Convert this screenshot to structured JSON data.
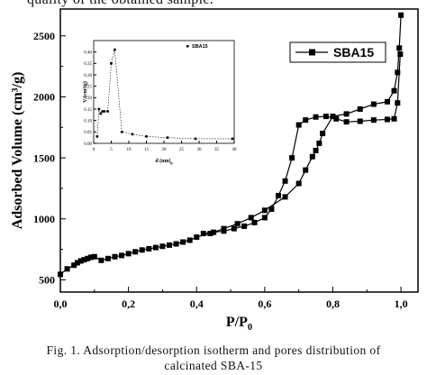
{
  "header_text": "quality of the obtained sample.",
  "caption": {
    "line1": "Fig. 1. Adsorption/desorption isotherm and pores distribution of",
    "line2": "calcinated SBA-15"
  },
  "chart_data": [
    {
      "type": "line",
      "xlabel": "P/P",
      "xlabel_sub": "0",
      "ylabel": "Adsorbed Volume (cm³/g)",
      "xlim": [
        0.0,
        1.05
      ],
      "ylim": [
        400,
        2720
      ],
      "xticks": [
        0.0,
        0.2,
        0.4,
        0.6,
        0.8,
        1.0
      ],
      "xtick_labels": [
        "0,0",
        "0,2",
        "0,4",
        "0,6",
        "0,8",
        "1,0"
      ],
      "yticks": [
        500,
        1000,
        1500,
        2000,
        2500
      ],
      "ytick_labels": [
        "500",
        "1000",
        "1500",
        "2000",
        "2500"
      ],
      "legend": {
        "position": "top-right",
        "entries": [
          "SBA15"
        ]
      },
      "series": [
        {
          "name": "SBA15",
          "color": "#000000",
          "marker": "square",
          "x": [
            0.0,
            0.02,
            0.04,
            0.05,
            0.06,
            0.07,
            0.08,
            0.09,
            0.1,
            0.12,
            0.14,
            0.16,
            0.18,
            0.2,
            0.22,
            0.24,
            0.26,
            0.28,
            0.3,
            0.32,
            0.34,
            0.36,
            0.38,
            0.4,
            0.44,
            0.48,
            0.52,
            0.56,
            0.6,
            0.66,
            0.7,
            0.72,
            0.74,
            0.75,
            0.76,
            0.77,
            0.8,
            0.84,
            0.88,
            0.92,
            0.96,
            0.98,
            0.99,
            0.995,
            1.0
          ],
          "y": [
            545,
            590,
            620,
            640,
            655,
            665,
            675,
            685,
            690,
            660,
            675,
            690,
            700,
            715,
            730,
            745,
            755,
            765,
            775,
            785,
            795,
            810,
            825,
            850,
            880,
            920,
            960,
            1010,
            1070,
            1180,
            1290,
            1400,
            1510,
            1560,
            1620,
            1700,
            1840,
            1860,
            1900,
            1940,
            1960,
            2050,
            2200,
            2400,
            2670
          ]
        },
        {
          "name": "",
          "color": "#000000",
          "marker": "square",
          "x": [
            0.998,
            0.99,
            0.98,
            0.96,
            0.92,
            0.88,
            0.84,
            0.81,
            0.78,
            0.75,
            0.72,
            0.7,
            0.68,
            0.66,
            0.64,
            0.62,
            0.6,
            0.57,
            0.54,
            0.51,
            0.48,
            0.45,
            0.42
          ],
          "y": [
            2350,
            1950,
            1820,
            1815,
            1810,
            1800,
            1795,
            1820,
            1840,
            1835,
            1810,
            1770,
            1500,
            1310,
            1190,
            1080,
            1010,
            970,
            940,
            920,
            900,
            890,
            880
          ]
        }
      ]
    },
    {
      "type": "line",
      "xlabel": "d  (nm)",
      "xlabel_sub": "p",
      "ylabel": "V  (cm³/g)",
      "ylabel_sub": "p",
      "xlim": [
        0,
        40
      ],
      "ylim": [
        0.0,
        0.45
      ],
      "xticks": [
        0,
        5,
        10,
        15,
        20,
        25,
        30,
        35,
        40
      ],
      "yticks": [
        0.0,
        0.05,
        0.1,
        0.15,
        0.2,
        0.25,
        0.3,
        0.35,
        0.4
      ],
      "ytick_labels": [
        "0.00",
        "0.05",
        "0.10",
        "0.15",
        "0.20",
        "0.25",
        "0.30",
        "0.35",
        "0.40"
      ],
      "legend": {
        "position": "top-right",
        "entries": [
          "SBA15"
        ]
      },
      "series": [
        {
          "name": "SBA15",
          "color": "#000000",
          "marker": "square",
          "x": [
            1.0,
            1.5,
            2.0,
            2.5,
            3.0,
            4.0,
            5.0,
            6.0,
            8.0,
            11.0,
            15.0,
            21.0,
            29.0,
            39.5
          ],
          "y": [
            0.03,
            0.15,
            0.13,
            0.14,
            0.14,
            0.14,
            0.35,
            0.41,
            0.05,
            0.04,
            0.03,
            0.025,
            0.02,
            0.02
          ]
        }
      ]
    }
  ]
}
